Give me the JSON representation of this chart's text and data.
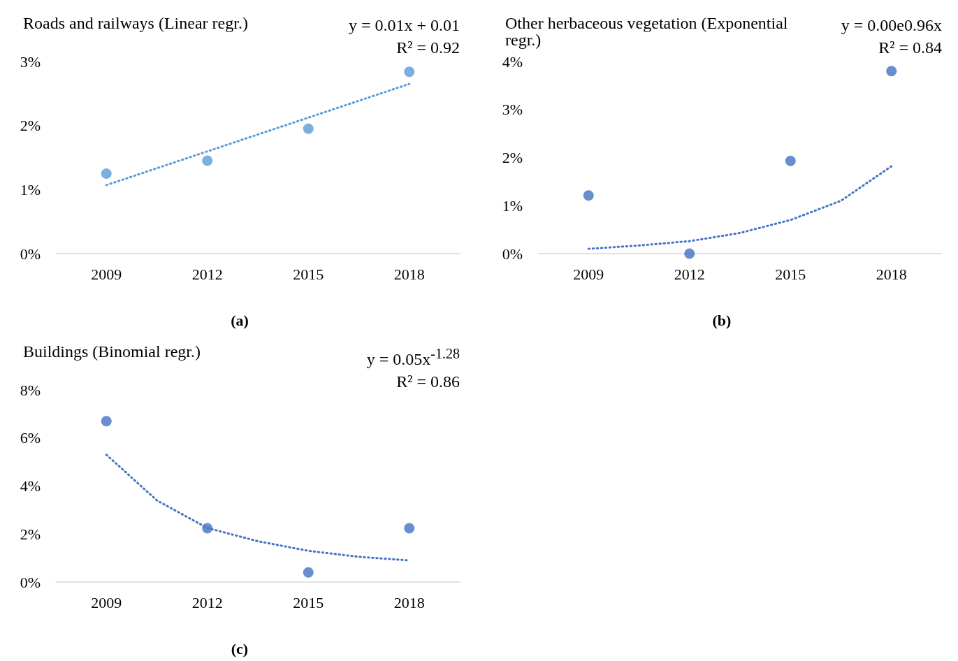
{
  "chart_data": [
    {
      "type": "scatter",
      "title": "Roads and railways (Linear regr.)",
      "annotations": [
        "y = 0.01x + 0.01",
        "R² = 0.92",
        "(a)"
      ],
      "xlim": [
        2007.5,
        2019.5
      ],
      "xticks": [
        2009,
        2012,
        2015,
        2018
      ],
      "ylim": [
        0,
        3
      ],
      "yticks": [
        {
          "value": 0,
          "label": "0%"
        },
        {
          "value": 1,
          "label": "1%"
        },
        {
          "value": 2,
          "label": "2%"
        },
        {
          "value": 3,
          "label": "3%"
        }
      ],
      "marker": "circle",
      "series": [
        {
          "color": "#5b9bd5",
          "x": [
            2009,
            2012,
            2015,
            2018
          ],
          "values": [
            1.25,
            1.45,
            1.95,
            2.84
          ]
        },
        {
          "type": "line",
          "color": "#5b9bd5",
          "x": [
            2009,
            2018
          ],
          "values": [
            1.07,
            2.65
          ],
          "line_style": "dotted",
          "marker": "none"
        }
      ]
    },
    {
      "type": "scatter",
      "title": "Other herbaceous vegetation (Exponential regr.)",
      "annotations": [
        "y = 0.00e0.96x",
        "R² = 0.84",
        "(b)"
      ],
      "xlim": [
        2007.5,
        2019.5
      ],
      "xticks": [
        2009,
        2012,
        2015,
        2018
      ],
      "ylim": [
        0,
        4
      ],
      "yticks": [
        {
          "value": 0,
          "label": "0%"
        },
        {
          "value": 1,
          "label": "1%"
        },
        {
          "value": 2,
          "label": "2%"
        },
        {
          "value": 3,
          "label": "3%"
        },
        {
          "value": 4,
          "label": "4%"
        }
      ],
      "marker": "circle",
      "series": [
        {
          "color": "#4472c4",
          "x": [
            2009,
            2012,
            2015,
            2018
          ],
          "values": [
            1.21,
            0,
            1.93,
            3.8
          ]
        },
        {
          "type": "line",
          "color": "#4472c4",
          "x": [
            2009,
            2010.5,
            2012,
            2013.5,
            2015,
            2016.5,
            2018
          ],
          "values": [
            0.1,
            0.17,
            0.26,
            0.43,
            0.7,
            1.1,
            1.82
          ],
          "line_style": "dotted",
          "marker": "none"
        }
      ]
    },
    {
      "type": "scatter",
      "title": "Buildings (Binomial regr.)",
      "annotations": [
        "y = 0.05x$^{-1.28}$",
        "R² = 0.86",
        "(c)"
      ],
      "xlim": [
        2007.5,
        2019.5
      ],
      "xticks": [
        2009,
        2012,
        2015,
        2018
      ],
      "ylim": [
        0,
        8
      ],
      "yticks": [
        {
          "value": 0,
          "label": "0%"
        },
        {
          "value": 2,
          "label": "2%"
        },
        {
          "value": 4,
          "label": "4%"
        },
        {
          "value": 6,
          "label": "6%"
        },
        {
          "value": 8,
          "label": "8%"
        }
      ],
      "marker": "circle",
      "series": [
        {
          "color": "#4472c4",
          "x": [
            2009,
            2012,
            2015,
            2018
          ],
          "values": [
            6.7,
            2.24,
            0.4,
            2.24
          ]
        },
        {
          "type": "line",
          "color": "#4472c4",
          "x": [
            2009,
            2010.5,
            2012,
            2013.5,
            2015,
            2016.5,
            2018
          ],
          "values": [
            5.3,
            3.4,
            2.25,
            1.7,
            1.3,
            1.05,
            0.9
          ],
          "line_style": "dotted",
          "marker": "none"
        }
      ]
    }
  ]
}
